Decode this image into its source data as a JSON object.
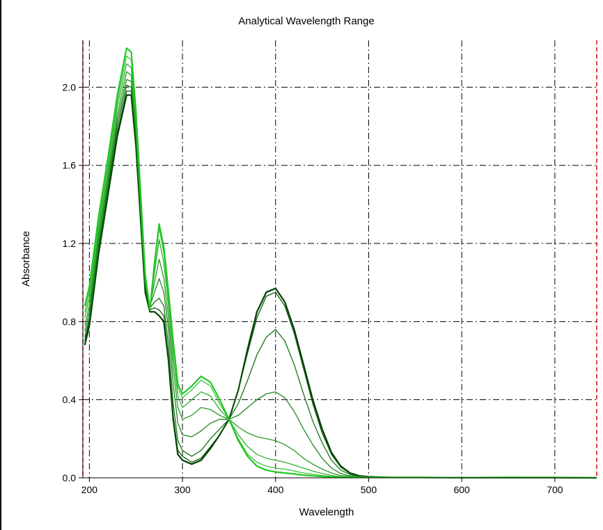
{
  "chart_data": {
    "type": "line",
    "title": "Analytical Wavelength Range",
    "xlabel": "Wavelength",
    "ylabel": "Absorbance",
    "xlim": [
      193,
      745
    ],
    "ylim": [
      0,
      2.24
    ],
    "x_ticks": [
      200,
      300,
      400,
      500,
      600,
      700
    ],
    "x_tick_labels": [
      "200",
      "300",
      "400",
      "500",
      "600",
      "700"
    ],
    "y_ticks": [
      0,
      0.4,
      0.8,
      1.2,
      1.6,
      2.0
    ],
    "y_tick_labels": [
      "0.0",
      "0.4",
      "0.8",
      "1.2",
      "1.6",
      "2.0"
    ],
    "grid": true,
    "analytical_range_markers": [
      193,
      745
    ],
    "series_colors": [
      "#003d00",
      "#0a5a0a",
      "#147414",
      "#1e881e",
      "#289c28",
      "#32ae32",
      "#3cc43c",
      "#21c821"
    ],
    "marker_color": "#e00000",
    "series": [
      {
        "x": [
          195,
          200,
          210,
          220,
          230,
          240,
          245,
          250,
          260,
          265,
          270,
          275,
          280,
          285,
          290,
          295,
          300,
          310,
          320,
          330,
          340,
          350,
          360,
          370,
          380,
          390,
          400,
          410,
          420,
          430,
          440,
          450,
          460,
          470,
          480,
          490,
          500,
          520,
          550,
          600,
          650,
          700,
          745
        ],
        "y": [
          0.68,
          0.78,
          1.15,
          1.45,
          1.75,
          1.96,
          1.96,
          1.7,
          0.95,
          0.85,
          0.85,
          0.83,
          0.8,
          0.6,
          0.3,
          0.12,
          0.09,
          0.07,
          0.09,
          0.15,
          0.22,
          0.3,
          0.45,
          0.66,
          0.85,
          0.95,
          0.97,
          0.9,
          0.76,
          0.58,
          0.4,
          0.25,
          0.13,
          0.06,
          0.025,
          0.01,
          0.006,
          0.003,
          0.002,
          0.001,
          0.001,
          0.001,
          0.0
        ]
      },
      {
        "x": [
          195,
          200,
          210,
          220,
          230,
          240,
          245,
          250,
          260,
          265,
          270,
          275,
          280,
          285,
          290,
          295,
          300,
          310,
          320,
          330,
          340,
          350,
          360,
          370,
          380,
          390,
          400,
          410,
          420,
          430,
          440,
          450,
          460,
          470,
          480,
          490,
          500,
          520,
          550,
          600,
          650,
          700,
          745
        ],
        "y": [
          0.7,
          0.8,
          1.17,
          1.47,
          1.77,
          1.98,
          1.98,
          1.72,
          0.96,
          0.86,
          0.87,
          0.86,
          0.83,
          0.62,
          0.32,
          0.14,
          0.11,
          0.08,
          0.1,
          0.16,
          0.22,
          0.3,
          0.45,
          0.64,
          0.82,
          0.93,
          0.95,
          0.88,
          0.74,
          0.56,
          0.38,
          0.23,
          0.12,
          0.055,
          0.022,
          0.008,
          0.005,
          0.003,
          0.002,
          0.001,
          0.001,
          0.001,
          0.0
        ]
      },
      {
        "x": [
          195,
          200,
          210,
          220,
          230,
          240,
          245,
          250,
          260,
          265,
          270,
          275,
          280,
          285,
          290,
          295,
          300,
          310,
          320,
          330,
          340,
          350,
          360,
          370,
          380,
          390,
          400,
          410,
          420,
          430,
          440,
          450,
          460,
          470,
          480,
          490,
          500,
          520,
          550,
          600,
          650,
          700,
          745
        ],
        "y": [
          0.72,
          0.82,
          1.19,
          1.49,
          1.8,
          2.01,
          2.0,
          1.75,
          0.98,
          0.87,
          0.9,
          0.92,
          0.88,
          0.68,
          0.38,
          0.19,
          0.14,
          0.11,
          0.14,
          0.2,
          0.25,
          0.3,
          0.38,
          0.5,
          0.63,
          0.72,
          0.76,
          0.7,
          0.58,
          0.43,
          0.29,
          0.18,
          0.09,
          0.04,
          0.017,
          0.006,
          0.004,
          0.002,
          0.002,
          0.001,
          0.001,
          0.001,
          0.0
        ]
      },
      {
        "x": [
          195,
          200,
          210,
          220,
          230,
          240,
          245,
          250,
          260,
          265,
          270,
          275,
          280,
          285,
          290,
          295,
          300,
          310,
          320,
          330,
          340,
          350,
          360,
          370,
          380,
          390,
          400,
          410,
          420,
          430,
          440,
          450,
          460,
          470,
          480,
          490,
          500,
          520,
          550,
          600,
          650,
          700,
          745
        ],
        "y": [
          0.75,
          0.85,
          1.22,
          1.52,
          1.83,
          2.04,
          2.03,
          1.78,
          1.0,
          0.88,
          0.95,
          1.02,
          0.95,
          0.76,
          0.48,
          0.28,
          0.22,
          0.21,
          0.24,
          0.28,
          0.3,
          0.3,
          0.32,
          0.36,
          0.4,
          0.43,
          0.44,
          0.41,
          0.34,
          0.25,
          0.17,
          0.1,
          0.05,
          0.022,
          0.01,
          0.004,
          0.003,
          0.002,
          0.002,
          0.001,
          0.001,
          0.001,
          0.0
        ]
      },
      {
        "x": [
          195,
          200,
          210,
          220,
          230,
          240,
          245,
          250,
          260,
          265,
          270,
          275,
          280,
          285,
          290,
          295,
          300,
          310,
          320,
          330,
          340,
          350,
          360,
          370,
          380,
          390,
          400,
          410,
          420,
          430,
          440,
          450,
          460,
          470,
          480,
          490,
          500,
          520,
          550,
          600,
          650,
          700,
          745
        ],
        "y": [
          0.78,
          0.88,
          1.25,
          1.55,
          1.86,
          2.08,
          2.06,
          1.8,
          1.01,
          0.88,
          1.0,
          1.12,
          1.02,
          0.82,
          0.56,
          0.36,
          0.3,
          0.32,
          0.36,
          0.35,
          0.32,
          0.3,
          0.26,
          0.23,
          0.21,
          0.2,
          0.19,
          0.17,
          0.14,
          0.1,
          0.07,
          0.045,
          0.025,
          0.012,
          0.006,
          0.003,
          0.002,
          0.002,
          0.002,
          0.001,
          0.001,
          0.001,
          0.0
        ]
      },
      {
        "x": [
          195,
          200,
          210,
          220,
          230,
          240,
          245,
          250,
          260,
          265,
          270,
          275,
          280,
          285,
          290,
          295,
          300,
          310,
          320,
          330,
          340,
          350,
          360,
          370,
          380,
          390,
          400,
          410,
          420,
          430,
          440,
          450,
          460,
          470,
          480,
          490,
          500,
          520,
          550,
          600,
          650,
          700,
          745
        ],
        "y": [
          0.82,
          0.92,
          1.28,
          1.58,
          1.9,
          2.12,
          2.1,
          1.83,
          1.02,
          0.88,
          1.05,
          1.22,
          1.1,
          0.88,
          0.62,
          0.42,
          0.36,
          0.4,
          0.44,
          0.42,
          0.35,
          0.3,
          0.22,
          0.16,
          0.12,
          0.1,
          0.09,
          0.08,
          0.065,
          0.05,
          0.035,
          0.022,
          0.012,
          0.006,
          0.003,
          0.002,
          0.002,
          0.002,
          0.002,
          0.001,
          0.001,
          0.001,
          0.0
        ]
      },
      {
        "x": [
          195,
          200,
          210,
          220,
          230,
          240,
          245,
          250,
          260,
          265,
          270,
          275,
          280,
          285,
          290,
          295,
          300,
          310,
          320,
          330,
          340,
          350,
          360,
          370,
          380,
          390,
          400,
          410,
          420,
          430,
          440,
          450,
          460,
          470,
          480,
          490,
          500,
          520,
          550,
          600,
          650,
          700,
          745
        ],
        "y": [
          0.85,
          0.95,
          1.31,
          1.61,
          1.93,
          2.16,
          2.14,
          1.86,
          1.03,
          0.87,
          1.08,
          1.28,
          1.15,
          0.92,
          0.67,
          0.46,
          0.41,
          0.45,
          0.5,
          0.47,
          0.38,
          0.3,
          0.2,
          0.12,
          0.08,
          0.06,
          0.05,
          0.045,
          0.035,
          0.025,
          0.018,
          0.012,
          0.007,
          0.004,
          0.002,
          0.002,
          0.002,
          0.002,
          0.002,
          0.001,
          0.001,
          0.002,
          0.0
        ]
      },
      {
        "x": [
          195,
          200,
          210,
          220,
          230,
          240,
          245,
          250,
          260,
          265,
          270,
          275,
          280,
          285,
          290,
          295,
          300,
          310,
          320,
          330,
          340,
          350,
          360,
          370,
          380,
          390,
          400,
          410,
          420,
          430,
          440,
          450,
          460,
          470,
          480,
          490,
          500,
          520,
          550,
          600,
          650,
          700,
          745
        ],
        "y": [
          0.88,
          0.98,
          1.34,
          1.64,
          1.96,
          2.2,
          2.18,
          1.88,
          1.04,
          0.86,
          1.1,
          1.3,
          1.18,
          0.95,
          0.7,
          0.48,
          0.43,
          0.47,
          0.52,
          0.49,
          0.4,
          0.3,
          0.19,
          0.11,
          0.06,
          0.04,
          0.03,
          0.025,
          0.02,
          0.014,
          0.01,
          0.007,
          0.005,
          0.003,
          0.002,
          0.002,
          0.002,
          0.002,
          0.002,
          0.001,
          0.003,
          0.002,
          0.0
        ]
      }
    ]
  }
}
